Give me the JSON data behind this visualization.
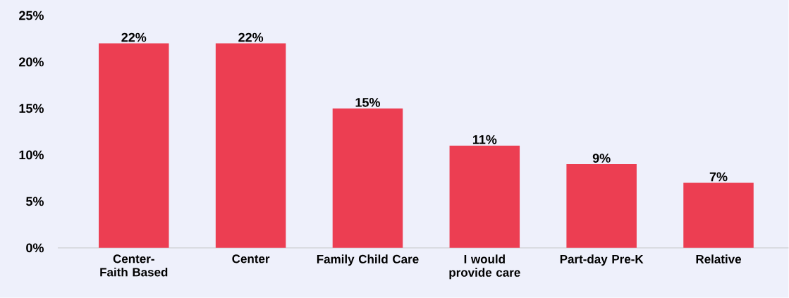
{
  "chart_data": {
    "type": "bar",
    "categories": [
      "Center-Faith Based",
      "Center",
      "Family Child Care",
      "I would provide care",
      "Part-day Pre-K",
      "Relative"
    ],
    "values": [
      22,
      22,
      15,
      11,
      9,
      7
    ],
    "value_labels": [
      "22%",
      "22%",
      "15%",
      "11%",
      "9%",
      "7%"
    ],
    "color": "#ec3e52",
    "ylim": [
      0,
      25
    ],
    "yticks": [
      {
        "value": 0,
        "label": "0%"
      },
      {
        "value": 5,
        "label": "5%"
      },
      {
        "value": 10,
        "label": "10%"
      },
      {
        "value": 15,
        "label": "15%"
      },
      {
        "value": 20,
        "label": "20%"
      },
      {
        "value": 25,
        "label": "25%"
      }
    ]
  }
}
